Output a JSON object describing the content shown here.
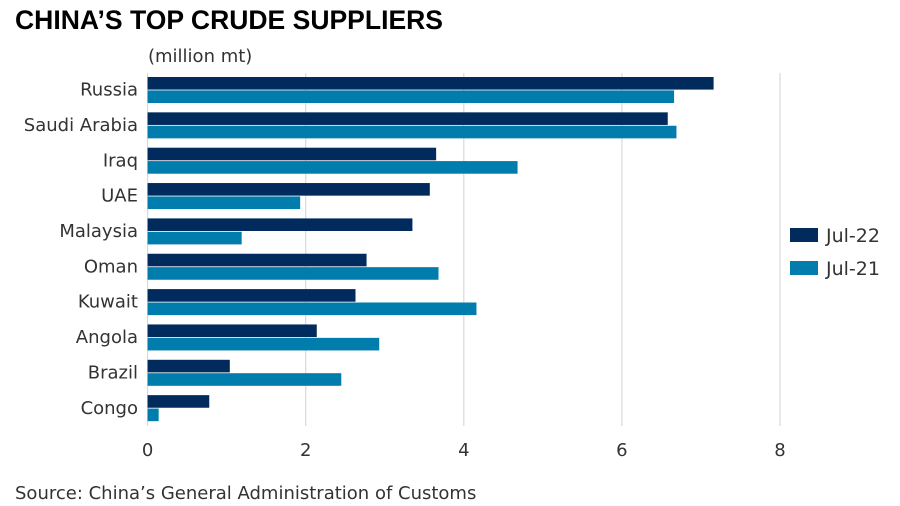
{
  "chart_data": {
    "type": "bar",
    "orientation": "horizontal",
    "title": "CHINA’S TOP CRUDE SUPPLIERS",
    "unit_label": "(million mt)",
    "categories": [
      "Russia",
      "Saudi Arabia",
      "Iraq",
      "UAE",
      "Malaysia",
      "Oman",
      "Kuwait",
      "Angola",
      "Brazil",
      "Congo"
    ],
    "series": [
      {
        "name": "Jul-22",
        "color": "#002b5c",
        "values": [
          7.16,
          6.58,
          3.65,
          3.57,
          3.35,
          2.77,
          2.63,
          2.14,
          1.04,
          0.78
        ]
      },
      {
        "name": "Jul-21",
        "color": "#007cad",
        "values": [
          6.66,
          6.69,
          4.68,
          1.93,
          1.19,
          3.68,
          4.16,
          2.93,
          2.45,
          0.14
        ]
      }
    ],
    "xlim": [
      0,
      8
    ],
    "xticks": [
      "0",
      "2",
      "4",
      "6",
      "8"
    ],
    "grid": true,
    "legend_placement": "right",
    "source": "Source: China’s General Administration of Customs"
  }
}
